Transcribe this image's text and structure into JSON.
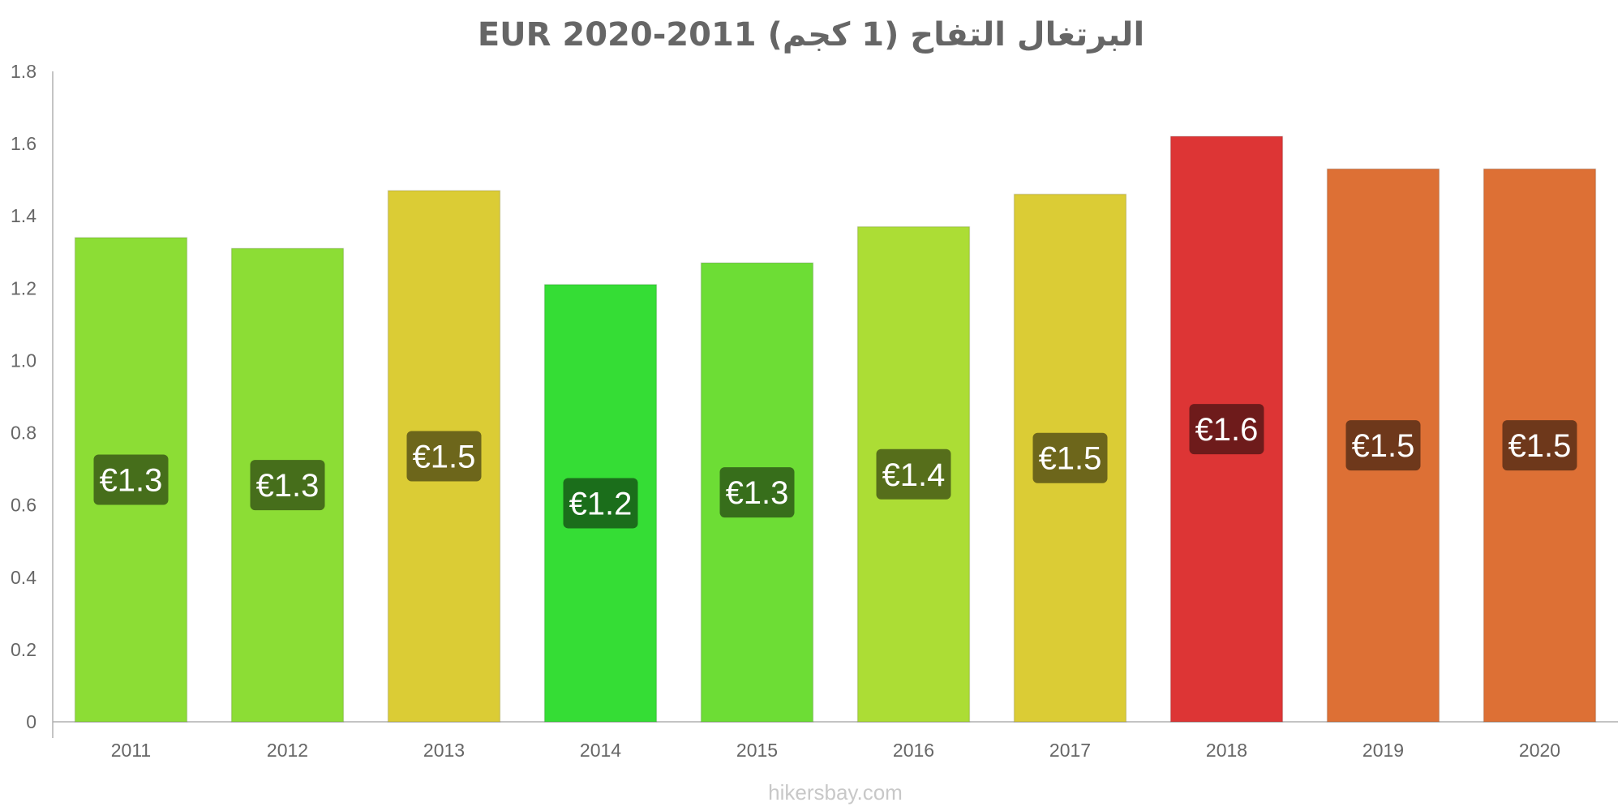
{
  "chart_data": {
    "type": "bar",
    "title": "البرتغال التفاح (1 كجم) EUR 2020-2011",
    "xlabel": "",
    "ylabel": "",
    "ylim": [
      0,
      1.8
    ],
    "y_ticks": [
      "0",
      "0.2",
      "0.4",
      "0.6",
      "0.8",
      "1.0",
      "1.2",
      "1.4",
      "1.6",
      "1.8"
    ],
    "categories": [
      "2011",
      "2012",
      "2013",
      "2014",
      "2015",
      "2016",
      "2017",
      "2018",
      "2019",
      "2020"
    ],
    "values": [
      1.34,
      1.31,
      1.47,
      1.21,
      1.27,
      1.37,
      1.46,
      1.62,
      1.53,
      1.53
    ],
    "labels": [
      "€1.3",
      "€1.3",
      "€1.5",
      "€1.2",
      "€1.3",
      "€1.4",
      "€1.5",
      "€1.6",
      "€1.5",
      "€1.5"
    ],
    "bar_colors": [
      "#8cdd35",
      "#8cdd35",
      "#dbcc35",
      "#35dd35",
      "#6ddd35",
      "#acdd35",
      "#dbcc35",
      "#dd3535",
      "#dd7035",
      "#dd7035"
    ],
    "label_bg_colors": [
      "#466e1b",
      "#466e1b",
      "#6d661b",
      "#1b6e1b",
      "#376e1b",
      "#566e1b",
      "#6d661b",
      "#6e1b1b",
      "#6e381b",
      "#6e381b"
    ],
    "grid": false,
    "legend": "none"
  },
  "watermark": "hikersbay.com"
}
